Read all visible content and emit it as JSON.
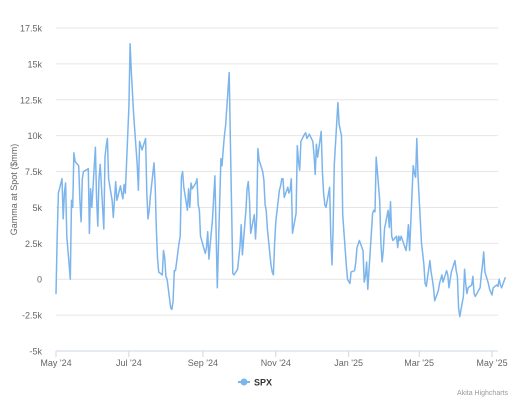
{
  "chart_data": {
    "type": "line",
    "title": "",
    "xlabel": "",
    "ylabel": "Gamma at Spot ($mm)",
    "ylim": [
      -5000,
      17500
    ],
    "xlim": [
      "2024-05-01",
      "2025-05-06"
    ],
    "yticks": [
      -5000,
      -2500,
      0,
      2500,
      5000,
      7500,
      10000,
      12500,
      15000,
      17500
    ],
    "ytick_labels": [
      "-5k",
      "-2.5k",
      "0",
      "2.5k",
      "5k",
      "7.5k",
      "10k",
      "12.5k",
      "15k",
      "17.5k"
    ],
    "xticks": [
      "2024-05-01",
      "2024-07-01",
      "2024-09-01",
      "2024-11-01",
      "2025-01-01",
      "2025-03-01",
      "2025-05-01"
    ],
    "xtick_labels": [
      "May '24",
      "Jul '24",
      "Sep '24",
      "Nov '24",
      "Jan '25",
      "Mar '25",
      "May '25"
    ],
    "grid": "horizontal",
    "legend": "bottom-center",
    "credit": "Akita Highcharts",
    "series": [
      {
        "name": "SPX",
        "color": "#7cb5ec",
        "points": [
          [
            "2024-05-01",
            -1000
          ],
          [
            "2024-05-02",
            3000
          ],
          [
            "2024-05-03",
            6000
          ],
          [
            "2024-05-06",
            7000
          ],
          [
            "2024-05-07",
            4200
          ],
          [
            "2024-05-08",
            6000
          ],
          [
            "2024-05-09",
            6700
          ],
          [
            "2024-05-10",
            3000
          ],
          [
            "2024-05-13",
            0
          ],
          [
            "2024-05-14",
            5500
          ],
          [
            "2024-05-15",
            5000
          ],
          [
            "2024-05-16",
            8800
          ],
          [
            "2024-05-17",
            8200
          ],
          [
            "2024-05-20",
            7900
          ],
          [
            "2024-05-21",
            5500
          ],
          [
            "2024-05-22",
            4000
          ],
          [
            "2024-05-23",
            7000
          ],
          [
            "2024-05-24",
            7500
          ],
          [
            "2024-05-28",
            7700
          ],
          [
            "2024-05-29",
            3200
          ],
          [
            "2024-05-30",
            6300
          ],
          [
            "2024-05-31",
            5000
          ],
          [
            "2024-06-03",
            9200
          ],
          [
            "2024-06-04",
            5600
          ],
          [
            "2024-06-05",
            3700
          ],
          [
            "2024-06-06",
            7000
          ],
          [
            "2024-06-07",
            8000
          ],
          [
            "2024-06-10",
            3500
          ],
          [
            "2024-06-11",
            8500
          ],
          [
            "2024-06-12",
            9300
          ],
          [
            "2024-06-13",
            9800
          ],
          [
            "2024-06-14",
            7000
          ],
          [
            "2024-06-17",
            5500
          ],
          [
            "2024-06-18",
            4300
          ],
          [
            "2024-06-20",
            6800
          ],
          [
            "2024-06-21",
            5500
          ],
          [
            "2024-06-24",
            6500
          ],
          [
            "2024-06-25",
            6000
          ],
          [
            "2024-06-26",
            5600
          ],
          [
            "2024-06-27",
            6600
          ],
          [
            "2024-06-28",
            6000
          ],
          [
            "2024-07-01",
            12000
          ],
          [
            "2024-07-02",
            16400
          ],
          [
            "2024-07-03",
            14500
          ],
          [
            "2024-07-05",
            11500
          ],
          [
            "2024-07-08",
            8000
          ],
          [
            "2024-07-09",
            6200
          ],
          [
            "2024-07-10",
            9600
          ],
          [
            "2024-07-11",
            9300
          ],
          [
            "2024-07-12",
            9000
          ],
          [
            "2024-07-15",
            9800
          ],
          [
            "2024-07-16",
            6000
          ],
          [
            "2024-07-17",
            4200
          ],
          [
            "2024-07-18",
            4800
          ],
          [
            "2024-07-19",
            5800
          ],
          [
            "2024-07-22",
            8100
          ],
          [
            "2024-07-23",
            6500
          ],
          [
            "2024-07-24",
            3600
          ],
          [
            "2024-07-25",
            1500
          ],
          [
            "2024-07-26",
            500
          ],
          [
            "2024-07-29",
            300
          ],
          [
            "2024-07-30",
            2000
          ],
          [
            "2024-07-31",
            1500
          ],
          [
            "2024-08-01",
            200
          ],
          [
            "2024-08-02",
            0
          ],
          [
            "2024-08-05",
            -2000
          ],
          [
            "2024-08-06",
            -2100
          ],
          [
            "2024-08-07",
            -1500
          ],
          [
            "2024-08-08",
            600
          ],
          [
            "2024-08-09",
            600
          ],
          [
            "2024-08-12",
            2500
          ],
          [
            "2024-08-13",
            3000
          ],
          [
            "2024-08-14",
            7100
          ],
          [
            "2024-08-15",
            7500
          ],
          [
            "2024-08-16",
            6400
          ],
          [
            "2024-08-19",
            4800
          ],
          [
            "2024-08-20",
            6300
          ],
          [
            "2024-08-21",
            5000
          ],
          [
            "2024-08-22",
            6700
          ],
          [
            "2024-08-23",
            6300
          ],
          [
            "2024-08-26",
            6700
          ],
          [
            "2024-08-27",
            7000
          ],
          [
            "2024-08-28",
            5200
          ],
          [
            "2024-08-29",
            4800
          ],
          [
            "2024-08-30",
            3000
          ],
          [
            "2024-09-03",
            1800
          ],
          [
            "2024-09-04",
            2200
          ],
          [
            "2024-09-05",
            3300
          ],
          [
            "2024-09-06",
            1400
          ],
          [
            "2024-09-09",
            4200
          ],
          [
            "2024-09-10",
            5700
          ],
          [
            "2024-09-11",
            7200
          ],
          [
            "2024-09-12",
            3300
          ],
          [
            "2024-09-13",
            -600
          ],
          [
            "2024-09-16",
            8400
          ],
          [
            "2024-09-17",
            7900
          ],
          [
            "2024-09-18",
            9000
          ],
          [
            "2024-09-19",
            10000
          ],
          [
            "2024-09-20",
            10700
          ],
          [
            "2024-09-23",
            14400
          ],
          [
            "2024-09-24",
            9500
          ],
          [
            "2024-09-25",
            5000
          ],
          [
            "2024-09-26",
            400
          ],
          [
            "2024-09-27",
            300
          ],
          [
            "2024-09-30",
            700
          ],
          [
            "2024-10-01",
            1500
          ],
          [
            "2024-10-02",
            2300
          ],
          [
            "2024-10-03",
            3800
          ],
          [
            "2024-10-04",
            1700
          ],
          [
            "2024-10-07",
            4800
          ],
          [
            "2024-10-08",
            6300
          ],
          [
            "2024-10-09",
            6800
          ],
          [
            "2024-10-10",
            5500
          ],
          [
            "2024-10-11",
            3200
          ],
          [
            "2024-10-14",
            4500
          ],
          [
            "2024-10-15",
            2800
          ],
          [
            "2024-10-16",
            4300
          ],
          [
            "2024-10-17",
            9100
          ],
          [
            "2024-10-18",
            8300
          ],
          [
            "2024-10-21",
            7500
          ],
          [
            "2024-10-22",
            6900
          ],
          [
            "2024-10-23",
            5200
          ],
          [
            "2024-10-24",
            4800
          ],
          [
            "2024-10-25",
            3500
          ],
          [
            "2024-10-28",
            1000
          ],
          [
            "2024-10-29",
            500
          ],
          [
            "2024-10-30",
            300
          ],
          [
            "2024-10-31",
            2500
          ],
          [
            "2024-11-01",
            4000
          ],
          [
            "2024-11-04",
            6200
          ],
          [
            "2024-11-05",
            6500
          ],
          [
            "2024-11-06",
            7000
          ],
          [
            "2024-11-07",
            7000
          ],
          [
            "2024-11-08",
            5700
          ],
          [
            "2024-11-11",
            6400
          ],
          [
            "2024-11-12",
            6000
          ],
          [
            "2024-11-13",
            6200
          ],
          [
            "2024-11-14",
            7000
          ],
          [
            "2024-11-15",
            3200
          ],
          [
            "2024-11-18",
            4600
          ],
          [
            "2024-11-19",
            9300
          ],
          [
            "2024-11-20",
            8200
          ],
          [
            "2024-11-21",
            7600
          ],
          [
            "2024-11-22",
            9600
          ],
          [
            "2024-11-25",
            10100
          ],
          [
            "2024-11-26",
            10200
          ],
          [
            "2024-11-27",
            9800
          ],
          [
            "2024-11-29",
            10100
          ],
          [
            "2024-12-02",
            9600
          ],
          [
            "2024-12-03",
            8700
          ],
          [
            "2024-12-04",
            7300
          ],
          [
            "2024-12-05",
            9400
          ],
          [
            "2024-12-06",
            8500
          ],
          [
            "2024-12-09",
            10300
          ],
          [
            "2024-12-10",
            7500
          ],
          [
            "2024-12-11",
            6000
          ],
          [
            "2024-12-12",
            5200
          ],
          [
            "2024-12-13",
            5000
          ],
          [
            "2024-12-16",
            6400
          ],
          [
            "2024-12-17",
            3000
          ],
          [
            "2024-12-18",
            1000
          ],
          [
            "2024-12-19",
            3500
          ],
          [
            "2024-12-20",
            8000
          ],
          [
            "2024-12-23",
            12300
          ],
          [
            "2024-12-24",
            10800
          ],
          [
            "2024-12-26",
            10000
          ],
          [
            "2024-12-27",
            4500
          ],
          [
            "2024-12-30",
            1000
          ],
          [
            "2024-12-31",
            0
          ],
          [
            "2025-01-02",
            -300
          ],
          [
            "2025-01-03",
            500
          ],
          [
            "2025-01-06",
            600
          ],
          [
            "2025-01-07",
            1200
          ],
          [
            "2025-01-08",
            2200
          ],
          [
            "2025-01-10",
            2700
          ],
          [
            "2025-01-13",
            2000
          ],
          [
            "2025-01-14",
            -200
          ],
          [
            "2025-01-15",
            200
          ],
          [
            "2025-01-16",
            1200
          ],
          [
            "2025-01-17",
            -700
          ],
          [
            "2025-01-21",
            4600
          ],
          [
            "2025-01-22",
            4800
          ],
          [
            "2025-01-23",
            4700
          ],
          [
            "2025-01-24",
            8500
          ],
          [
            "2025-01-27",
            5500
          ],
          [
            "2025-01-28",
            2500
          ],
          [
            "2025-01-29",
            1200
          ],
          [
            "2025-01-30",
            2000
          ],
          [
            "2025-01-31",
            3500
          ],
          [
            "2025-02-03",
            4800
          ],
          [
            "2025-02-04",
            3600
          ],
          [
            "2025-02-05",
            5400
          ],
          [
            "2025-02-06",
            3000
          ],
          [
            "2025-02-07",
            2700
          ],
          [
            "2025-02-10",
            3000
          ],
          [
            "2025-02-11",
            2200
          ],
          [
            "2025-02-12",
            3000
          ],
          [
            "2025-02-13",
            2700
          ],
          [
            "2025-02-14",
            3000
          ],
          [
            "2025-02-18",
            2000
          ],
          [
            "2025-02-19",
            2700
          ],
          [
            "2025-02-20",
            3800
          ],
          [
            "2025-02-21",
            2000
          ],
          [
            "2025-02-24",
            7900
          ],
          [
            "2025-02-25",
            7400
          ],
          [
            "2025-02-26",
            7100
          ],
          [
            "2025-02-27",
            9800
          ],
          [
            "2025-02-28",
            7200
          ],
          [
            "2025-03-03",
            2500
          ],
          [
            "2025-03-04",
            1800
          ],
          [
            "2025-03-05",
            1000
          ],
          [
            "2025-03-06",
            -300
          ],
          [
            "2025-03-07",
            -500
          ],
          [
            "2025-03-10",
            1300
          ],
          [
            "2025-03-11",
            500
          ],
          [
            "2025-03-12",
            0
          ],
          [
            "2025-03-13",
            -600
          ],
          [
            "2025-03-14",
            -1500
          ],
          [
            "2025-03-17",
            -800
          ],
          [
            "2025-03-18",
            -300
          ],
          [
            "2025-03-19",
            0
          ],
          [
            "2025-03-20",
            300
          ],
          [
            "2025-03-21",
            -200
          ],
          [
            "2025-03-24",
            600
          ],
          [
            "2025-03-25",
            300
          ],
          [
            "2025-03-26",
            -600
          ],
          [
            "2025-03-27",
            0
          ],
          [
            "2025-03-28",
            500
          ],
          [
            "2025-03-31",
            1300
          ],
          [
            "2025-04-01",
            600
          ],
          [
            "2025-04-02",
            200
          ],
          [
            "2025-04-03",
            -2000
          ],
          [
            "2025-04-04",
            -2600
          ],
          [
            "2025-04-07",
            -1200
          ],
          [
            "2025-04-08",
            700
          ],
          [
            "2025-04-09",
            -300
          ],
          [
            "2025-04-10",
            -1000
          ],
          [
            "2025-04-11",
            -600
          ],
          [
            "2025-04-14",
            -400
          ],
          [
            "2025-04-15",
            200
          ],
          [
            "2025-04-16",
            -1000
          ],
          [
            "2025-04-17",
            -1200
          ],
          [
            "2025-04-21",
            -600
          ],
          [
            "2025-04-22",
            300
          ],
          [
            "2025-04-23",
            1000
          ],
          [
            "2025-04-24",
            1900
          ],
          [
            "2025-04-25",
            500
          ],
          [
            "2025-04-28",
            -300
          ],
          [
            "2025-04-29",
            -700
          ],
          [
            "2025-04-30",
            -900
          ],
          [
            "2025-05-01",
            -1100
          ],
          [
            "2025-05-02",
            -600
          ],
          [
            "2025-05-05",
            -400
          ],
          [
            "2025-05-06",
            -500
          ],
          [
            "2025-05-07",
            0
          ],
          [
            "2025-05-08",
            -400
          ],
          [
            "2025-05-09",
            -600
          ],
          [
            "2025-05-12",
            100
          ]
        ]
      }
    ]
  }
}
